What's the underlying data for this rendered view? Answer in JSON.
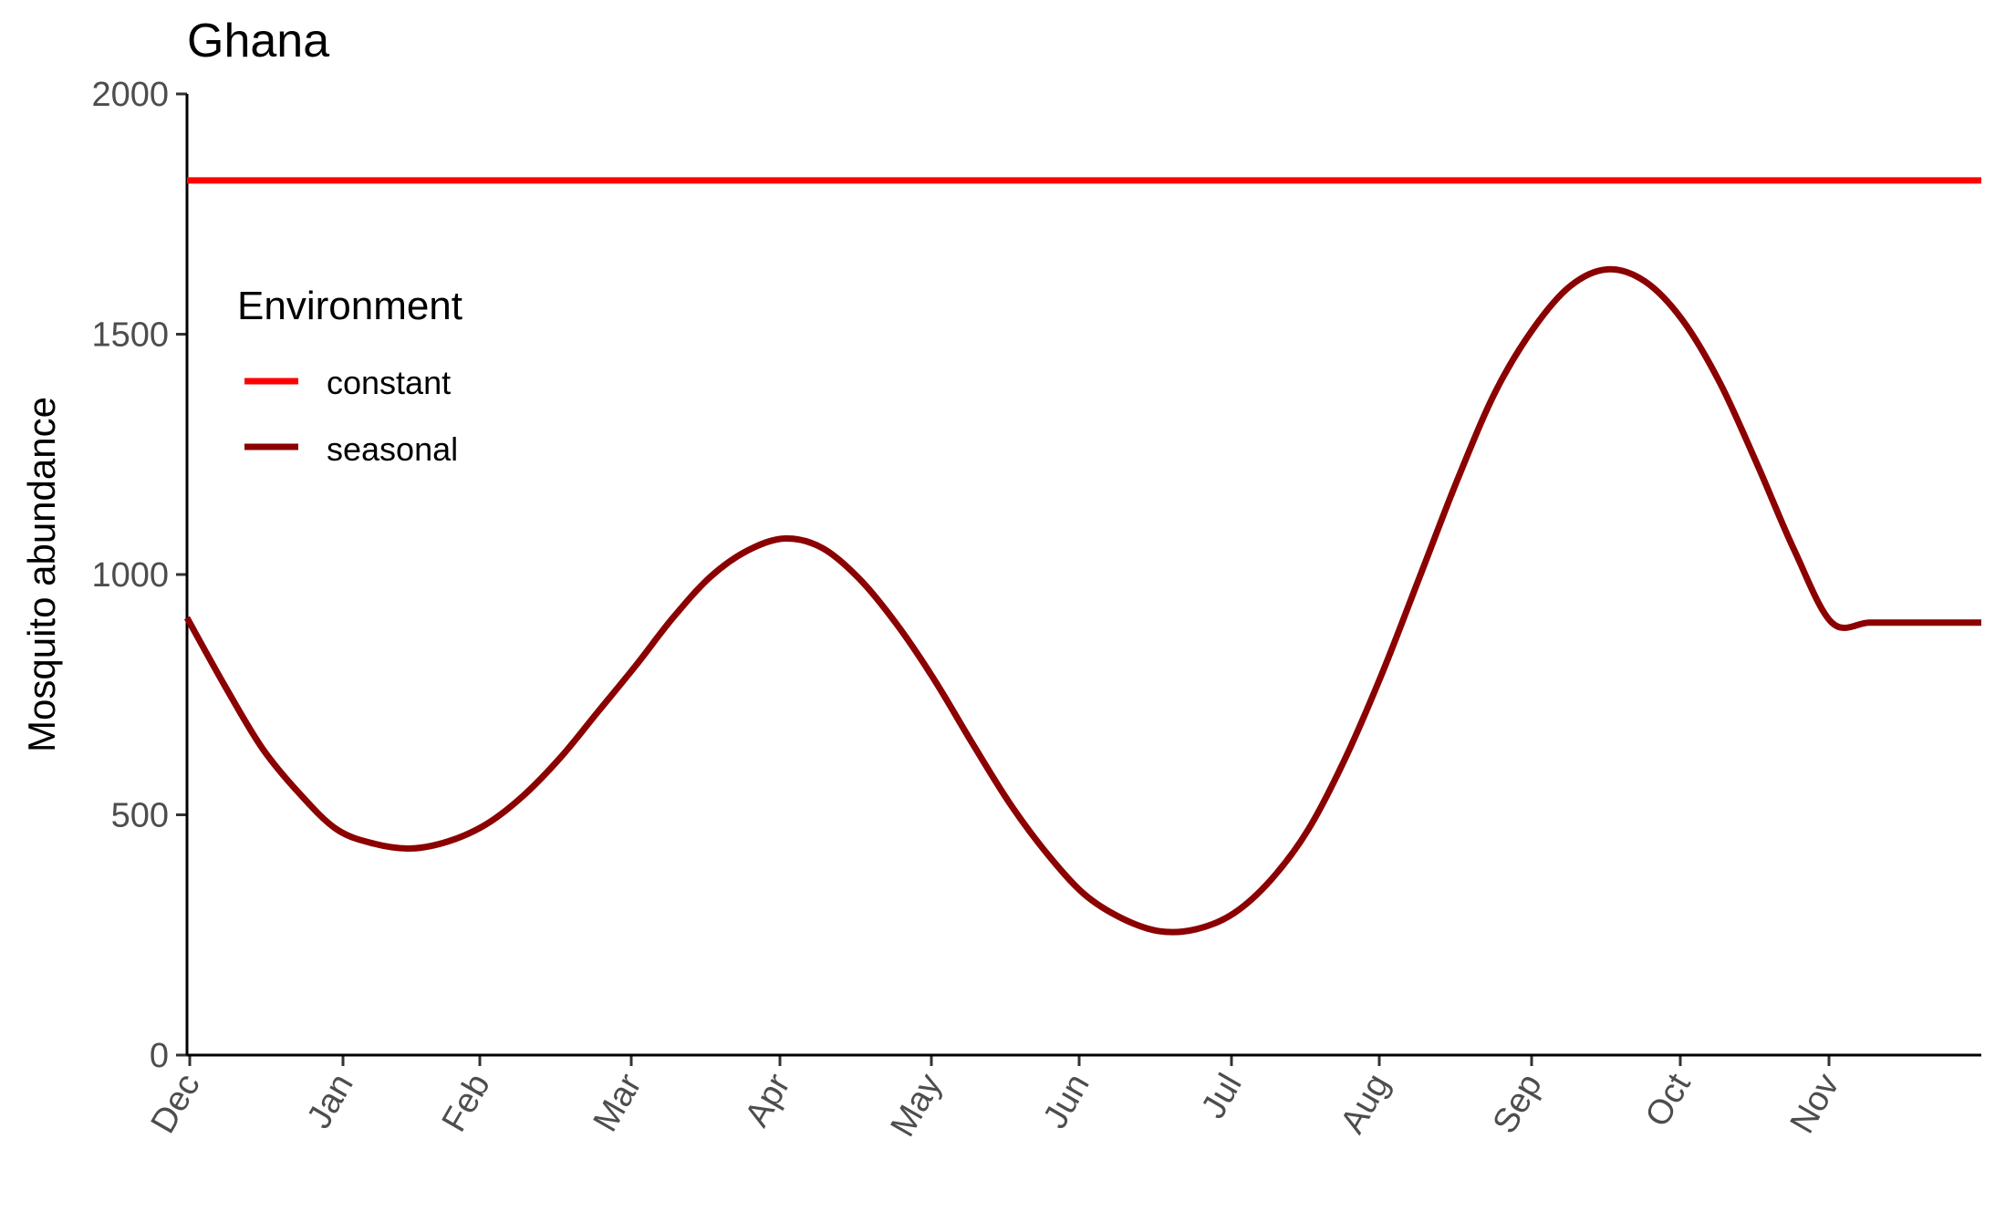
{
  "chart_data": {
    "type": "line",
    "title": "Ghana",
    "xlabel": "",
    "ylabel": "Mosquito abundance",
    "x_ticks": [
      "Dec",
      "Jan",
      "Feb",
      "Mar",
      "Apr",
      "May",
      "Jun",
      "Jul",
      "Aug",
      "Sep",
      "Oct",
      "Nov"
    ],
    "y_ticks": [
      "0",
      "500",
      "1000",
      "1500",
      "2000"
    ],
    "ylim": [
      0,
      2000
    ],
    "xlim_months": [
      0,
      12
    ],
    "legend": {
      "title": "Environment",
      "placement": "top-left",
      "entries": [
        {
          "label": "constant",
          "color": "#ff0000"
        },
        {
          "label": "seasonal",
          "color": "#8b0000"
        }
      ]
    },
    "series": [
      {
        "name": "constant",
        "color": "#ff0000",
        "x": [
          0,
          12
        ],
        "y": [
          1820,
          1820
        ]
      },
      {
        "name": "seasonal",
        "color": "#8b0000",
        "x": [
          0,
          0.25,
          0.5,
          0.75,
          1.0,
          1.25,
          1.5,
          1.75,
          2.0,
          2.25,
          2.5,
          2.75,
          3.0,
          3.25,
          3.5,
          3.75,
          4.0,
          4.25,
          4.5,
          4.75,
          5.0,
          5.25,
          5.5,
          5.75,
          6.0,
          6.25,
          6.5,
          6.75,
          7.0,
          7.25,
          7.5,
          7.75,
          8.0,
          8.25,
          8.5,
          8.75,
          9.0,
          9.25,
          9.5,
          9.75,
          10.0,
          10.25,
          10.5,
          10.75,
          11.0,
          11.25,
          11.5,
          11.75,
          12.0
        ],
        "y": [
          910,
          770,
          640,
          545,
          470,
          440,
          430,
          445,
          480,
          540,
          620,
          715,
          810,
          910,
          995,
          1050,
          1075,
          1055,
          990,
          895,
          780,
          650,
          525,
          420,
          335,
          285,
          258,
          262,
          295,
          365,
          470,
          620,
          800,
          1000,
          1200,
          1380,
          1510,
          1600,
          1635,
          1610,
          1530,
          1400,
          1230,
          1050,
          900,
          900,
          900,
          900,
          900
        ]
      }
    ]
  }
}
